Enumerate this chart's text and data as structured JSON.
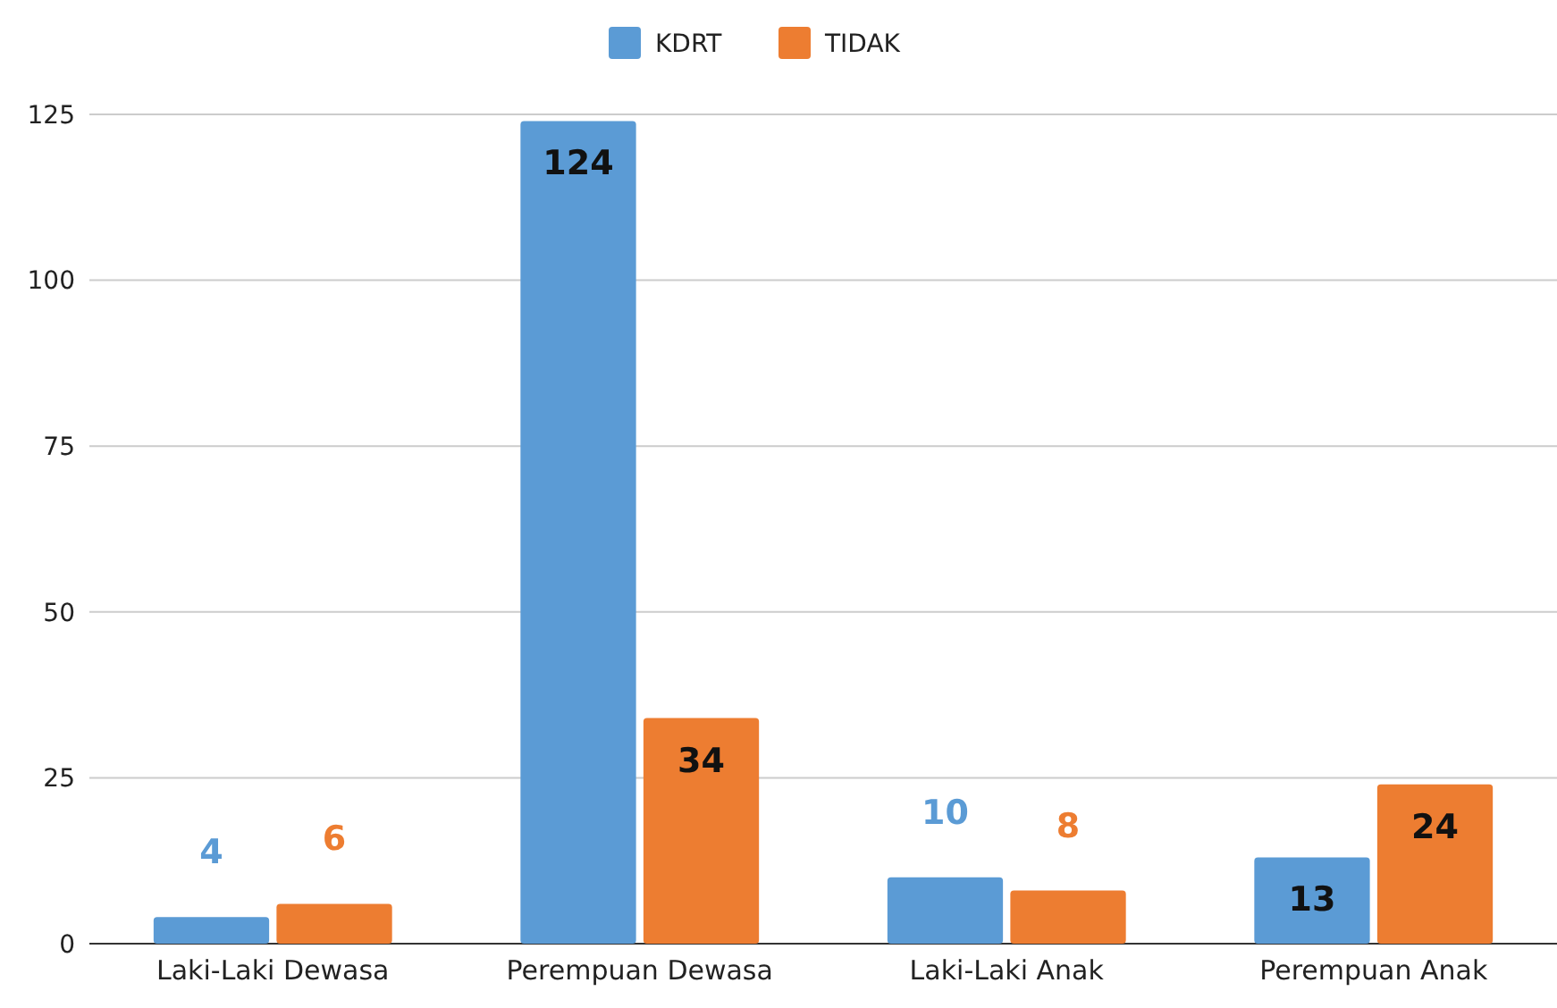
{
  "chart_data": {
    "type": "bar",
    "categories": [
      "Laki-Laki Dewasa",
      "Perempuan Dewasa",
      "Laki-Laki Anak",
      "Perempuan Anak"
    ],
    "series": [
      {
        "name": "KDRT",
        "color": "#5b9bd5",
        "values": [
          4,
          124,
          10,
          13
        ]
      },
      {
        "name": "TIDAK",
        "color": "#ed7d31",
        "values": [
          6,
          34,
          8,
          24
        ]
      }
    ],
    "ylim": [
      0,
      125
    ],
    "yticks": [
      0,
      25,
      50,
      75,
      100,
      125
    ],
    "grid": "y",
    "legend": "top",
    "data_labels": true
  }
}
